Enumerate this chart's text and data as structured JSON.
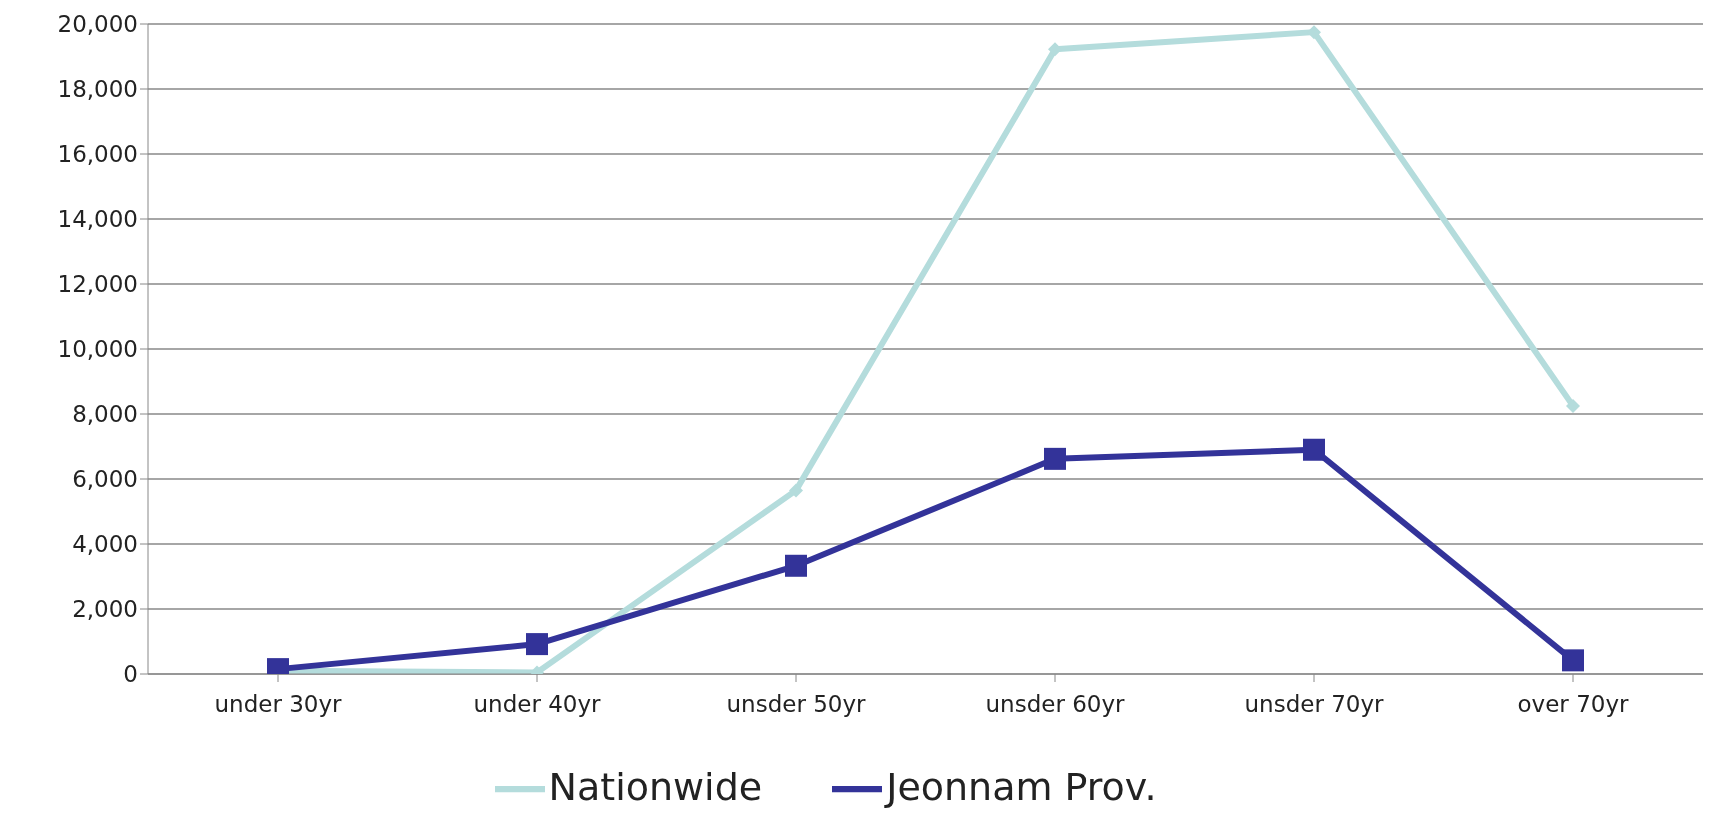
{
  "chart_data": {
    "type": "line",
    "categories": [
      "under 30yr",
      "under 40yr",
      "unsder 50yr",
      "unsder 60yr",
      "unsder 70yr",
      "over 70yr"
    ],
    "series": [
      {
        "name": "Nationwide",
        "color": "#b4dcdc",
        "marker": "diamond",
        "values": [
          100,
          50,
          5650,
          19220,
          19750,
          8250
        ]
      },
      {
        "name": "Jeonnam Prov.",
        "color": "#333399",
        "marker": "square",
        "values": [
          150,
          920,
          3330,
          6620,
          6900,
          420
        ]
      }
    ],
    "ylim": [
      0,
      20000
    ],
    "yticks": [
      {
        "value": 0,
        "label": "0"
      },
      {
        "value": 2000,
        "label": "2,000"
      },
      {
        "value": 4000,
        "label": "4,000"
      },
      {
        "value": 6000,
        "label": "6,000"
      },
      {
        "value": 8000,
        "label": "8,000"
      },
      {
        "value": 10000,
        "label": "10,000"
      },
      {
        "value": 12000,
        "label": "12,000"
      },
      {
        "value": 14000,
        "label": "14,000"
      },
      {
        "value": 16000,
        "label": "16,000"
      },
      {
        "value": 18000,
        "label": "18,000"
      },
      {
        "value": 20000,
        "label": "20,000"
      }
    ],
    "grid": "y",
    "legend": "bottom",
    "line_style": "solid"
  }
}
